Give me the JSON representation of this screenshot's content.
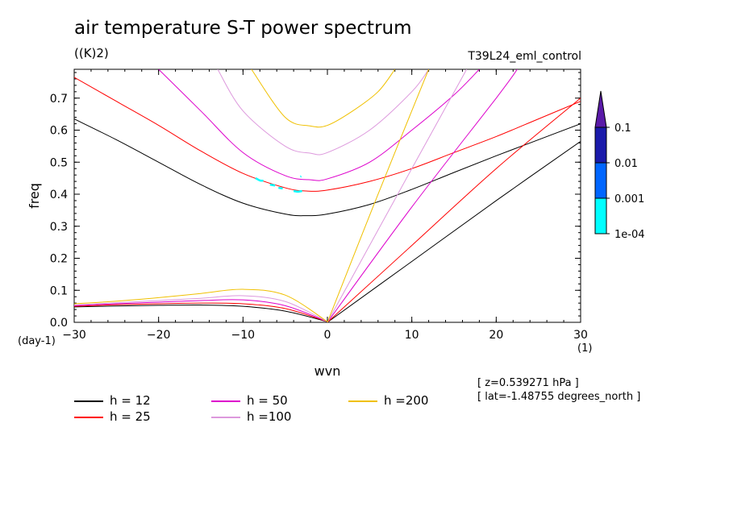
{
  "header": {
    "title": "air temperature S-T power spectrum",
    "units": "((K)2)",
    "run": "T39L24_eml_control",
    "x_unit_left": "(day-1)",
    "x_unit_right": "(1)",
    "info_z": "[ z=0.539271 hPa ]",
    "info_lat": "[ lat=-1.48755 degrees_north ]"
  },
  "chart_data": {
    "type": "line",
    "xlabel": "wvn",
    "ylabel": "freq",
    "xlim": [
      -30,
      30
    ],
    "ylim": [
      0,
      0.79
    ],
    "xticks": [
      "-30",
      "-20",
      "-10",
      "0",
      "10",
      "20",
      "30"
    ],
    "yticks": [
      "0.0",
      "0.1",
      "0.2",
      "0.3",
      "0.4",
      "0.5",
      "0.6",
      "0.7"
    ],
    "series": [
      {
        "name": "h = 12",
        "color": "#000000",
        "upper": [
          [
            -30,
            0.635
          ],
          [
            -25,
            0.57
          ],
          [
            -20,
            0.5
          ],
          [
            -15,
            0.43
          ],
          [
            -10,
            0.372
          ],
          [
            -5,
            0.338
          ],
          [
            -2.5,
            0.333
          ],
          [
            0,
            0.338
          ],
          [
            5,
            0.368
          ],
          [
            10,
            0.415
          ],
          [
            15,
            0.468
          ],
          [
            20,
            0.52
          ],
          [
            25,
            0.57
          ],
          [
            30,
            0.62
          ]
        ],
        "lower": [
          [
            -30,
            0.048
          ],
          [
            -25,
            0.051
          ],
          [
            -20,
            0.053
          ],
          [
            -15,
            0.054
          ],
          [
            -10,
            0.05
          ],
          [
            -5,
            0.035
          ],
          [
            0,
            0.002
          ]
        ],
        "kelvin": [
          [
            0,
            0
          ],
          [
            10,
            0.19
          ],
          [
            20,
            0.38
          ],
          [
            30,
            0.565
          ]
        ]
      },
      {
        "name": "h = 25",
        "color": "#ff0000",
        "upper": [
          [
            -30,
            0.765
          ],
          [
            -25,
            0.69
          ],
          [
            -20,
            0.615
          ],
          [
            -15,
            0.535
          ],
          [
            -10,
            0.465
          ],
          [
            -5,
            0.42
          ],
          [
            -2.5,
            0.41
          ],
          [
            0,
            0.413
          ],
          [
            5,
            0.44
          ],
          [
            10,
            0.48
          ],
          [
            15,
            0.53
          ],
          [
            20,
            0.58
          ],
          [
            25,
            0.635
          ],
          [
            30,
            0.69
          ]
        ],
        "lower": [
          [
            -30,
            0.05
          ],
          [
            -25,
            0.055
          ],
          [
            -20,
            0.058
          ],
          [
            -15,
            0.06
          ],
          [
            -10,
            0.058
          ],
          [
            -5,
            0.043
          ],
          [
            0,
            0.002
          ]
        ],
        "kelvin": [
          [
            0,
            0
          ],
          [
            10,
            0.24
          ],
          [
            20,
            0.48
          ],
          [
            30,
            0.7
          ]
        ]
      },
      {
        "name": "h = 50",
        "color": "#dd00cc",
        "upper": [
          [
            -20,
            0.79
          ],
          [
            -15,
            0.66
          ],
          [
            -10,
            0.53
          ],
          [
            -5,
            0.458
          ],
          [
            -2,
            0.445
          ],
          [
            0,
            0.448
          ],
          [
            5,
            0.5
          ],
          [
            10,
            0.6
          ],
          [
            15,
            0.71
          ],
          [
            18,
            0.79
          ]
        ],
        "lower": [
          [
            -30,
            0.052
          ],
          [
            -25,
            0.058
          ],
          [
            -20,
            0.063
          ],
          [
            -15,
            0.068
          ],
          [
            -10,
            0.07
          ],
          [
            -5,
            0.052
          ],
          [
            0,
            0.002
          ]
        ],
        "kelvin": [
          [
            0,
            0
          ],
          [
            10,
            0.36
          ],
          [
            20,
            0.7
          ],
          [
            22.5,
            0.79
          ]
        ]
      },
      {
        "name": "h =100",
        "color": "#dd99dd",
        "upper": [
          [
            -13,
            0.79
          ],
          [
            -10,
            0.66
          ],
          [
            -5,
            0.55
          ],
          [
            -2,
            0.528
          ],
          [
            0,
            0.53
          ],
          [
            5,
            0.6
          ],
          [
            10,
            0.72
          ],
          [
            12,
            0.79
          ]
        ],
        "lower": [
          [
            -30,
            0.054
          ],
          [
            -25,
            0.061
          ],
          [
            -20,
            0.068
          ],
          [
            -15,
            0.075
          ],
          [
            -10,
            0.083
          ],
          [
            -5,
            0.065
          ],
          [
            0,
            0.002
          ]
        ],
        "kelvin": [
          [
            0,
            0
          ],
          [
            10,
            0.48
          ],
          [
            16.5,
            0.79
          ]
        ]
      },
      {
        "name": "h =200",
        "color": "#f0c000",
        "upper": [
          [
            -9,
            0.79
          ],
          [
            -5,
            0.64
          ],
          [
            -2,
            0.613
          ],
          [
            0,
            0.615
          ],
          [
            3,
            0.66
          ],
          [
            6,
            0.72
          ],
          [
            8,
            0.79
          ]
        ],
        "lower": [
          [
            -30,
            0.058
          ],
          [
            -25,
            0.066
          ],
          [
            -20,
            0.077
          ],
          [
            -15,
            0.09
          ],
          [
            -10,
            0.103
          ],
          [
            -5,
            0.085
          ],
          [
            0,
            0.002
          ]
        ],
        "kelvin": [
          [
            0,
            0
          ],
          [
            6,
            0.4
          ],
          [
            12,
            0.79
          ]
        ]
      }
    ],
    "contour_patches": [
      {
        "color": "#00ffff",
        "points": [
          [
            -8.5,
            0.45
          ],
          [
            -8,
            0.443
          ],
          [
            -7.6,
            0.442
          ]
        ]
      },
      {
        "color": "#00ffff",
        "points": [
          [
            -6.8,
            0.43
          ],
          [
            -6.2,
            0.427
          ]
        ]
      },
      {
        "color": "#00ffff",
        "points": [
          [
            -5.8,
            0.42
          ],
          [
            -5.3,
            0.418
          ]
        ]
      },
      {
        "color": "#00ffff",
        "points": [
          [
            -4,
            0.41
          ],
          [
            -3.5,
            0.408
          ],
          [
            -3,
            0.41
          ]
        ]
      },
      {
        "color": "#00ffff",
        "points": [
          [
            -3.2,
            0.455
          ],
          [
            -3.1,
            0.456
          ]
        ]
      }
    ],
    "colorbar": {
      "labels": [
        "0.1",
        "0.01",
        "0.001",
        "1e-04"
      ],
      "colors": [
        "#5a1aa8",
        "#1a1aaa",
        "#0066ff",
        "#00ffff"
      ]
    },
    "legend": {
      "placement": "bottom"
    }
  }
}
